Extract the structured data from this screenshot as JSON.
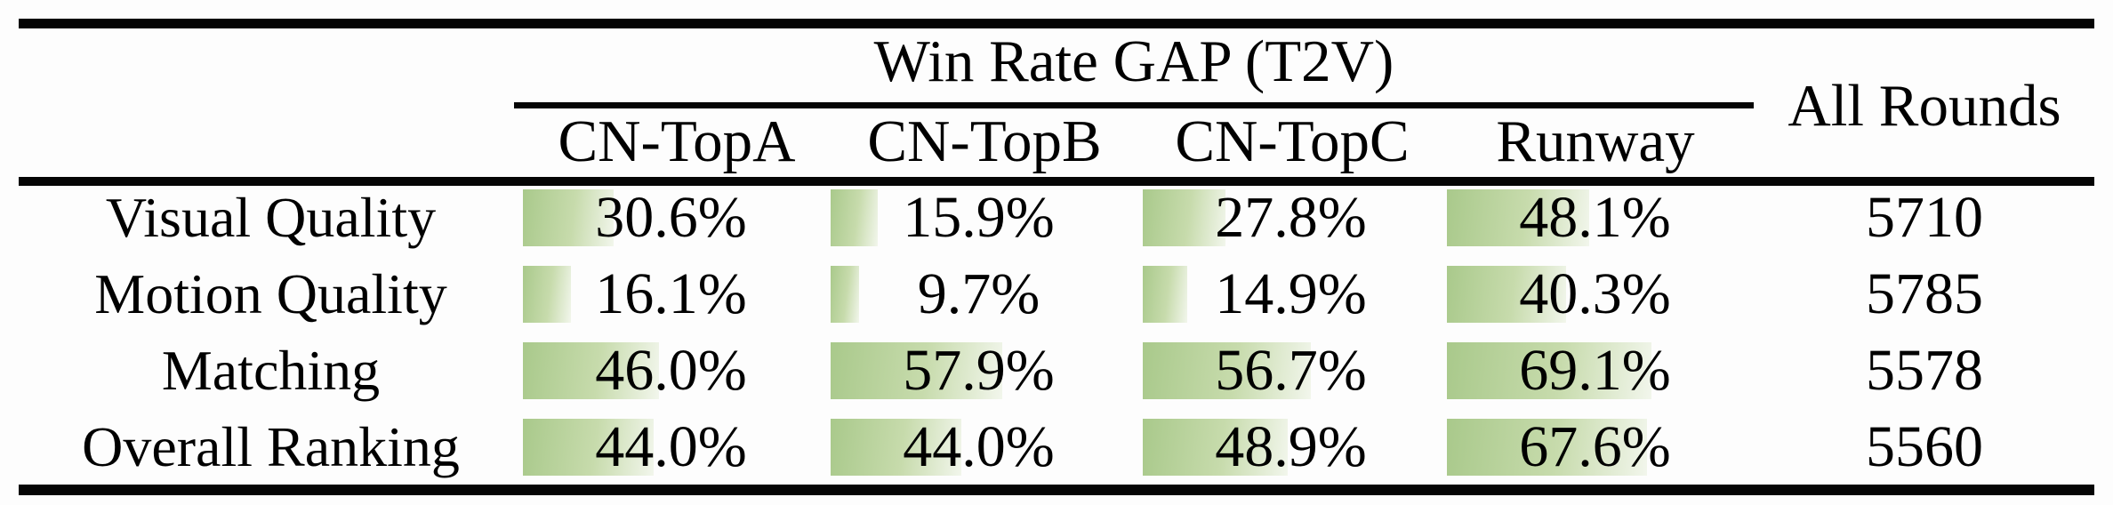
{
  "table": {
    "title": "Win Rate GAP (T2V)",
    "all_rounds_header": "All Rounds",
    "column_headers": [
      "CN-TopA",
      "CN-TopB",
      "CN-TopC",
      "Runway"
    ],
    "bar_color_start": "#a9c98b",
    "bar_color_end": "#f2f6ec",
    "rows": [
      {
        "label": "Visual Quality",
        "cells": [
          {
            "value": 30.6,
            "text": "30.6%"
          },
          {
            "value": 15.9,
            "text": "15.9%"
          },
          {
            "value": 27.8,
            "text": "27.8%"
          },
          {
            "value": 48.1,
            "text": "48.1%"
          }
        ],
        "all_rounds": "5710"
      },
      {
        "label": "Motion Quality",
        "cells": [
          {
            "value": 16.1,
            "text": "16.1%"
          },
          {
            "value": 9.7,
            "text": "9.7%"
          },
          {
            "value": 14.9,
            "text": "14.9%"
          },
          {
            "value": 40.3,
            "text": "40.3%"
          }
        ],
        "all_rounds": "5785"
      },
      {
        "label": "Matching",
        "cells": [
          {
            "value": 46.0,
            "text": "46.0%"
          },
          {
            "value": 57.9,
            "text": "57.9%"
          },
          {
            "value": 56.7,
            "text": "56.7%"
          },
          {
            "value": 69.1,
            "text": "69.1%"
          }
        ],
        "all_rounds": "5578"
      },
      {
        "label": "Overall Ranking",
        "cells": [
          {
            "value": 44.0,
            "text": "44.0%"
          },
          {
            "value": 44.0,
            "text": "44.0%"
          },
          {
            "value": 48.9,
            "text": "48.9%"
          },
          {
            "value": 67.6,
            "text": "67.6%"
          }
        ],
        "all_rounds": "5560"
      }
    ]
  },
  "chart_data": {
    "type": "table",
    "title": "Win Rate GAP (T2V)",
    "categories": [
      "CN-TopA",
      "CN-TopB",
      "CN-TopC",
      "Runway"
    ],
    "series": [
      {
        "name": "Visual Quality",
        "values": [
          30.6,
          15.9,
          27.8,
          48.1
        ],
        "all_rounds": 5710
      },
      {
        "name": "Motion Quality",
        "values": [
          16.1,
          9.7,
          14.9,
          40.3
        ],
        "all_rounds": 5785
      },
      {
        "name": "Matching",
        "values": [
          46.0,
          57.9,
          56.7,
          69.1
        ],
        "all_rounds": 5578
      },
      {
        "name": "Overall Ranking",
        "values": [
          44.0,
          44.0,
          48.9,
          67.6
        ],
        "all_rounds": 5560
      }
    ],
    "unit": "%",
    "bar_scale": [
      0,
      100
    ],
    "extra_column": "All Rounds",
    "layout": "data bars behind percentage text, green gradient, bar length proportional to value"
  }
}
